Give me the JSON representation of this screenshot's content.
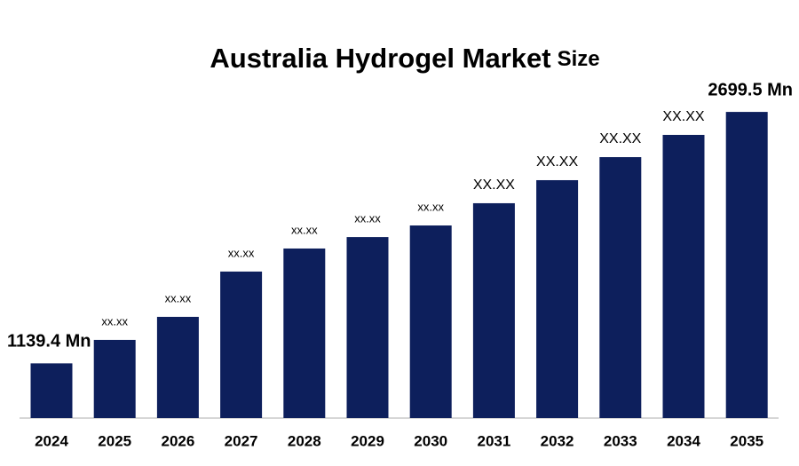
{
  "chart_data": {
    "type": "bar",
    "title": [
      "Australia Hydrogel Market",
      "Size"
    ],
    "categories": [
      "2024",
      "2025",
      "2026",
      "2027",
      "2028",
      "2029",
      "2030",
      "2031",
      "2032",
      "2033",
      "2034",
      "2035"
    ],
    "values": [
      1139.4,
      1285,
      1428,
      1709,
      1852,
      1923,
      1995,
      2133,
      2276,
      2419,
      2557,
      2699.5
    ],
    "value_labels": [
      "1139.4 Mn",
      "xx.xx",
      "xx.xx",
      "xx.xx",
      "xx.xx",
      "xx.xx",
      "xx.xx",
      "XX.XX",
      "XX.XX",
      "XX.XX",
      "XX.XX",
      "2699.5 Mn"
    ],
    "color": "#0d1f5c",
    "ylim": [
      800,
      2700
    ]
  }
}
